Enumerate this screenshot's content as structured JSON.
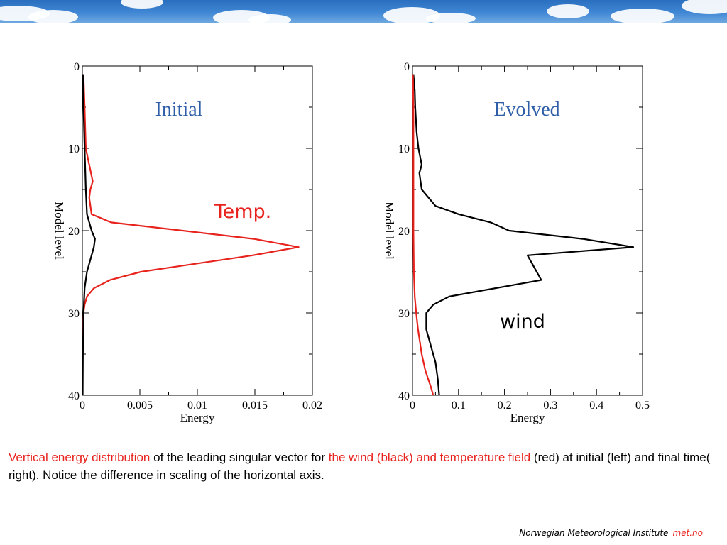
{
  "caption": {
    "part1": "Vertical energy distribution",
    "part2": " of the leading singular vector for ",
    "part3": "the wind (black) and temperature field",
    "part4": " (red) at initial (left) and final time( right). Notice the difference in scaling of the horizontal axis."
  },
  "footer": {
    "institute": "Norwegian Meteorological Institute",
    "brand": "met.no"
  },
  "colors": {
    "wind": "#000000",
    "temperature": "#e8231e",
    "panel_title": "#2e5ea8"
  },
  "chart_data": [
    {
      "type": "line",
      "title": "Initial",
      "xlabel": "Energy",
      "ylabel": "Model level",
      "xlim": [
        0,
        0.02
      ],
      "ylim": [
        40,
        0
      ],
      "x_ticks": [
        0,
        0.005,
        0.01,
        0.015,
        0.02
      ],
      "y_ticks": [
        0,
        10,
        20,
        30,
        40
      ],
      "annotation": "Temp.",
      "series": [
        {
          "color": "#e8231e",
          "levels": [
            1,
            5,
            10,
            12,
            14,
            15,
            16,
            18,
            19,
            21,
            22,
            23,
            25,
            26,
            27,
            28,
            29,
            30,
            32,
            35,
            40
          ],
          "values": [
            0.0001,
            0.0002,
            0.0003,
            0.0006,
            0.0009,
            0.0007,
            0.0006,
            0.0008,
            0.0025,
            0.0149,
            0.0188,
            0.0148,
            0.0051,
            0.0024,
            0.001,
            0.0004,
            0.0002,
            0.0001,
            5e-05,
            3e-05,
            2e-05
          ]
        },
        {
          "color": "#000000",
          "levels": [
            1,
            5,
            10,
            15,
            18,
            20,
            21,
            22,
            23,
            25,
            27,
            30,
            35,
            40
          ],
          "values": [
            5e-05,
            0.0001,
            0.0002,
            0.0003,
            0.0004,
            0.0008,
            0.0011,
            0.001,
            0.0008,
            0.0004,
            0.0002,
            0.0001,
            5e-05,
            3e-05
          ]
        }
      ]
    },
    {
      "type": "line",
      "title": "Evolved",
      "xlabel": "Energy",
      "ylabel": "Model level",
      "xlim": [
        0,
        0.5
      ],
      "ylim": [
        40,
        0
      ],
      "x_ticks": [
        0,
        0.1,
        0.2,
        0.3,
        0.4,
        0.5
      ],
      "x_tick_labels": [
        "0",
        "0.1",
        "0.2",
        "0.3",
        "0.4",
        "0.5"
      ],
      "y_ticks": [
        0,
        10,
        20,
        30,
        40
      ],
      "annotation": "wind",
      "series": [
        {
          "color": "#000000",
          "levels": [
            1,
            3,
            5,
            8,
            10,
            12,
            13,
            15,
            17,
            18,
            19,
            20,
            21,
            22,
            23,
            24,
            26,
            28,
            29,
            30,
            32,
            34,
            36,
            38,
            40
          ],
          "values": [
            0.002,
            0.005,
            0.006,
            0.009,
            0.013,
            0.02,
            0.015,
            0.02,
            0.05,
            0.1,
            0.17,
            0.21,
            0.37,
            0.48,
            0.25,
            0.26,
            0.28,
            0.08,
            0.045,
            0.03,
            0.03,
            0.04,
            0.05,
            0.055,
            0.058
          ]
        },
        {
          "color": "#e8231e",
          "levels": [
            1,
            5,
            10,
            15,
            20,
            25,
            28,
            30,
            32,
            35,
            37,
            39,
            40
          ],
          "values": [
            0.001,
            0.002,
            0.002,
            0.002,
            0.002,
            0.003,
            0.005,
            0.008,
            0.012,
            0.02,
            0.028,
            0.04,
            0.045
          ]
        }
      ]
    }
  ]
}
